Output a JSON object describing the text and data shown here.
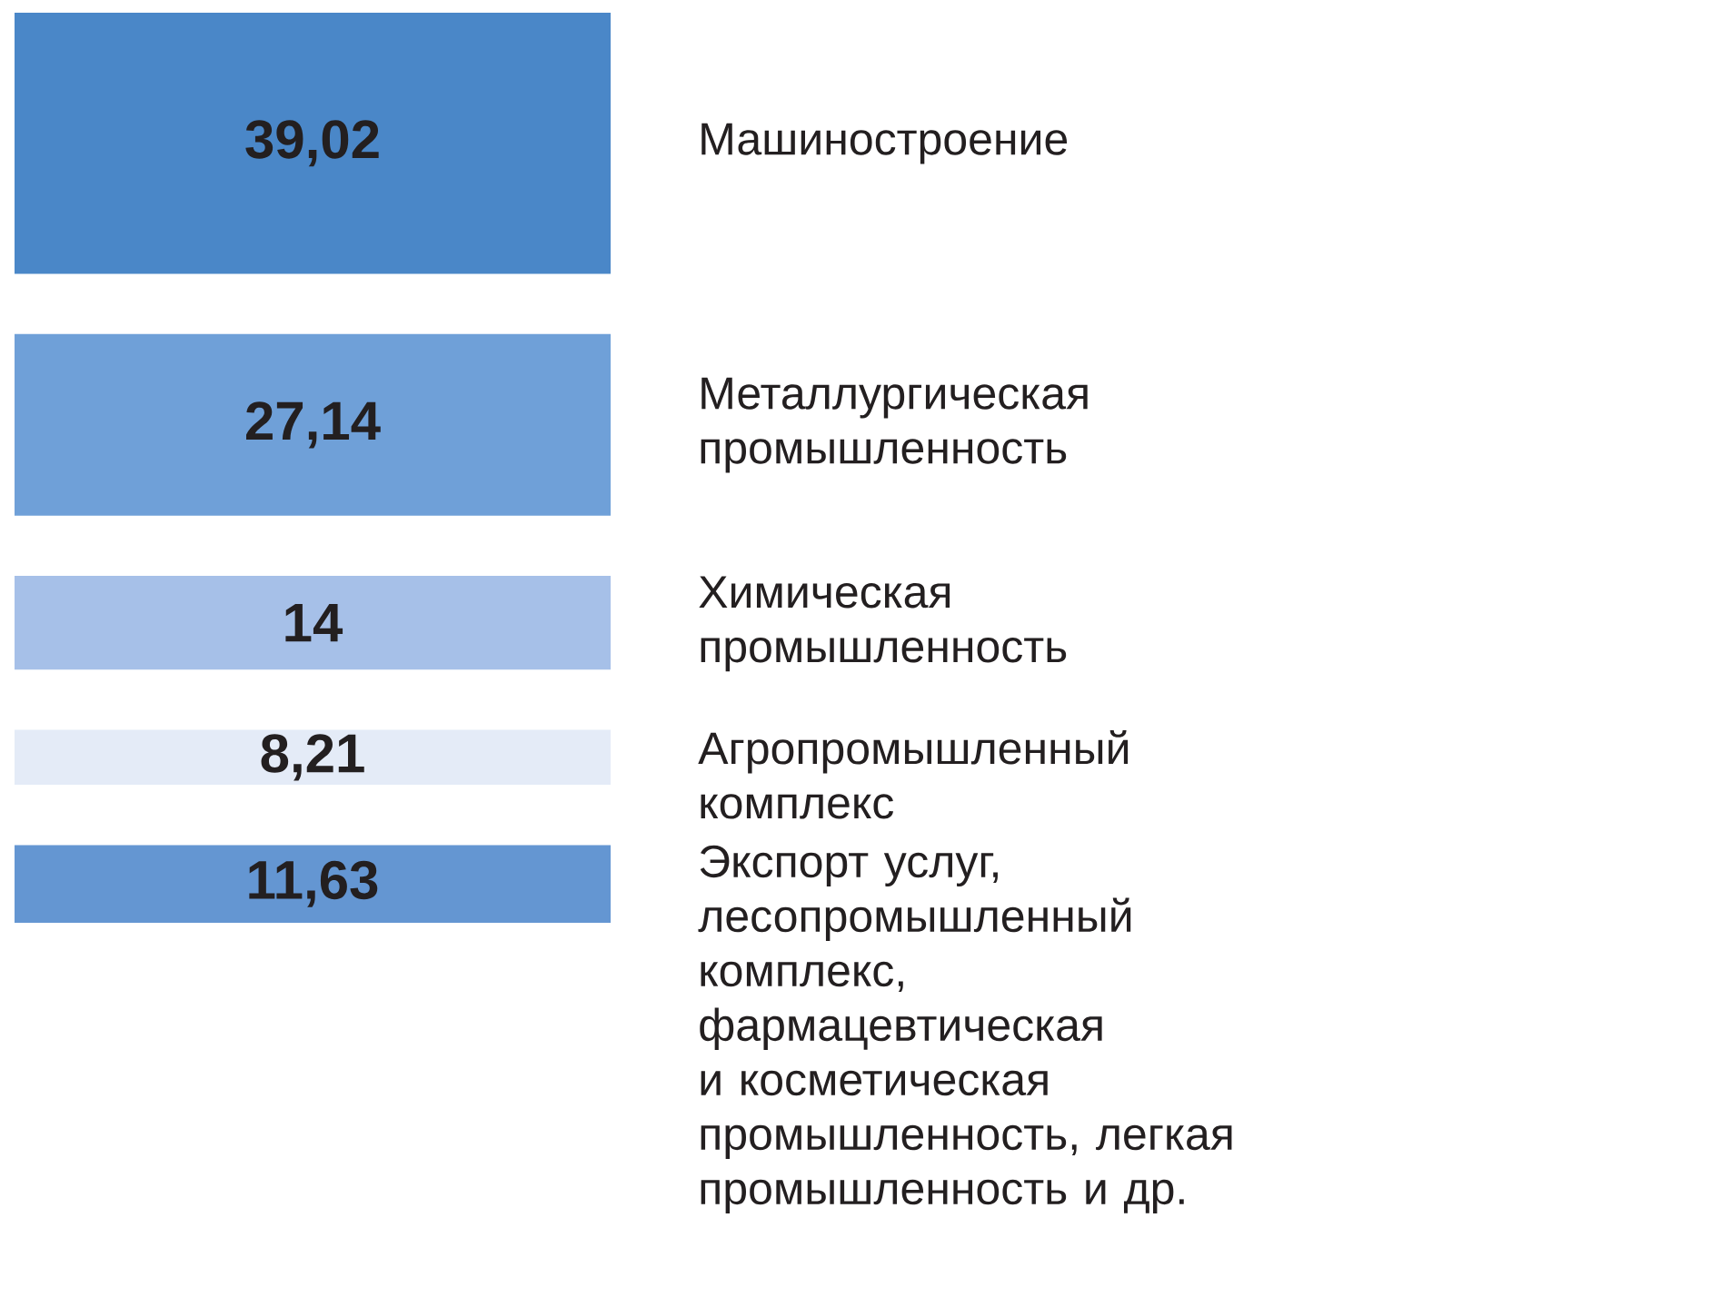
{
  "chart_data": {
    "type": "other",
    "categories": [
      "Машиностроение",
      "Металлургическая промышленность",
      "Химическая промышленность",
      "Агропромышленный комплекс",
      "Экспорт услуг, лесопромышленный комплекс, фармацевтическая и косметическая промышленность, легкая промышленность и др."
    ],
    "values": [
      39.02,
      27.14,
      14,
      8.21,
      11.63
    ],
    "colors": [
      "#4a87c8",
      "#6fa0d8",
      "#a6c0e8",
      "#e4ebf7",
      "#6496d2"
    ],
    "value_labels": [
      "39,02",
      "27,14",
      "14",
      "8,21",
      "11,63"
    ]
  }
}
